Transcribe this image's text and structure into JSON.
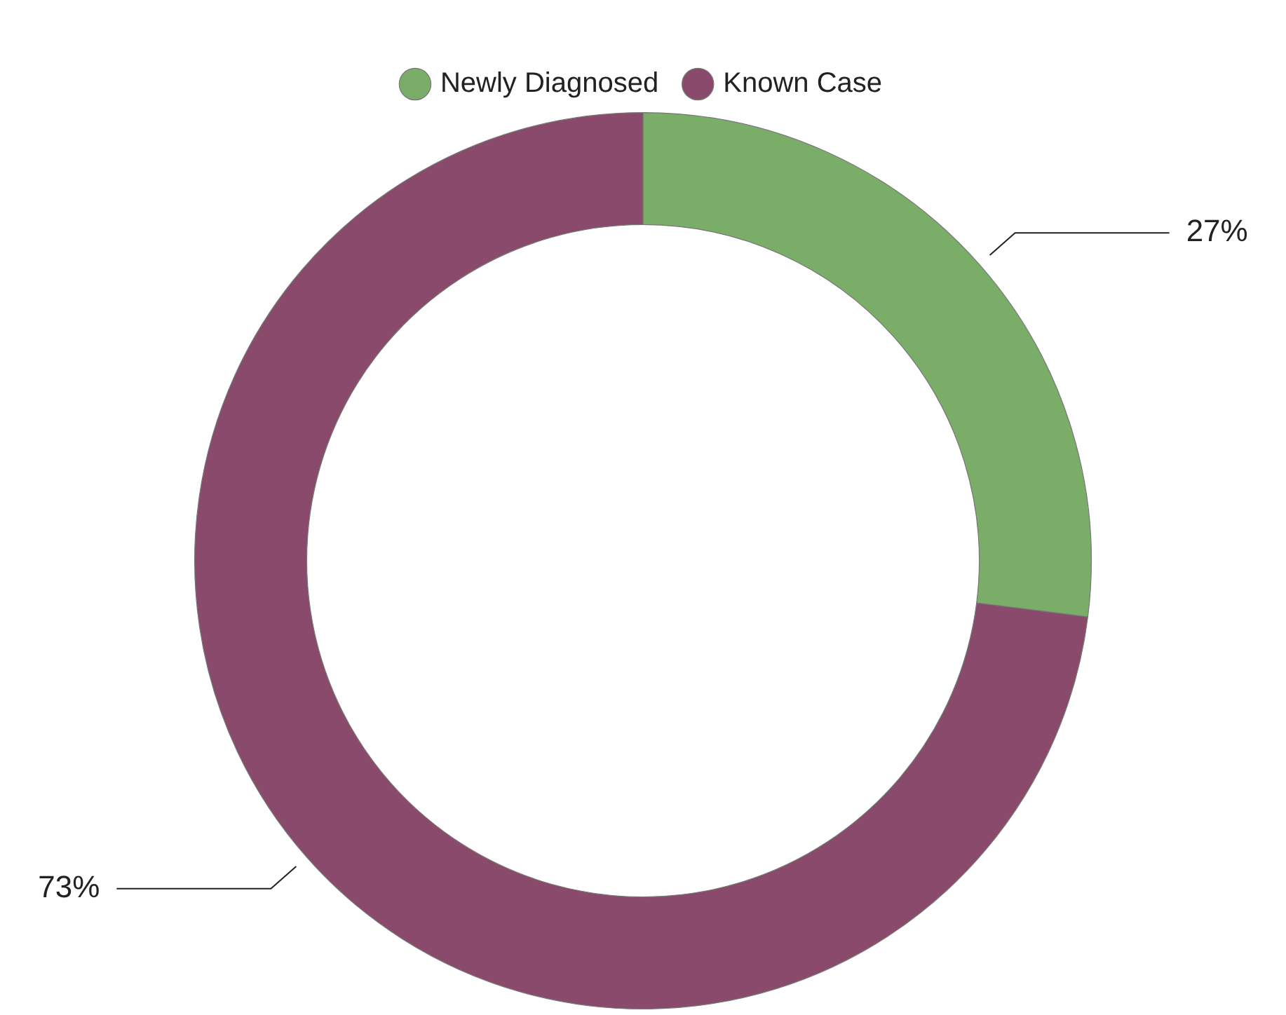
{
  "chart_data": {
    "type": "donut",
    "categories": [
      "Newly Diagnosed",
      "Known Case"
    ],
    "values": [
      27,
      73
    ],
    "colors": [
      "#7aad67",
      "#8a4a6c"
    ],
    "value_labels": [
      "27%",
      "73%"
    ],
    "legend": "top"
  }
}
